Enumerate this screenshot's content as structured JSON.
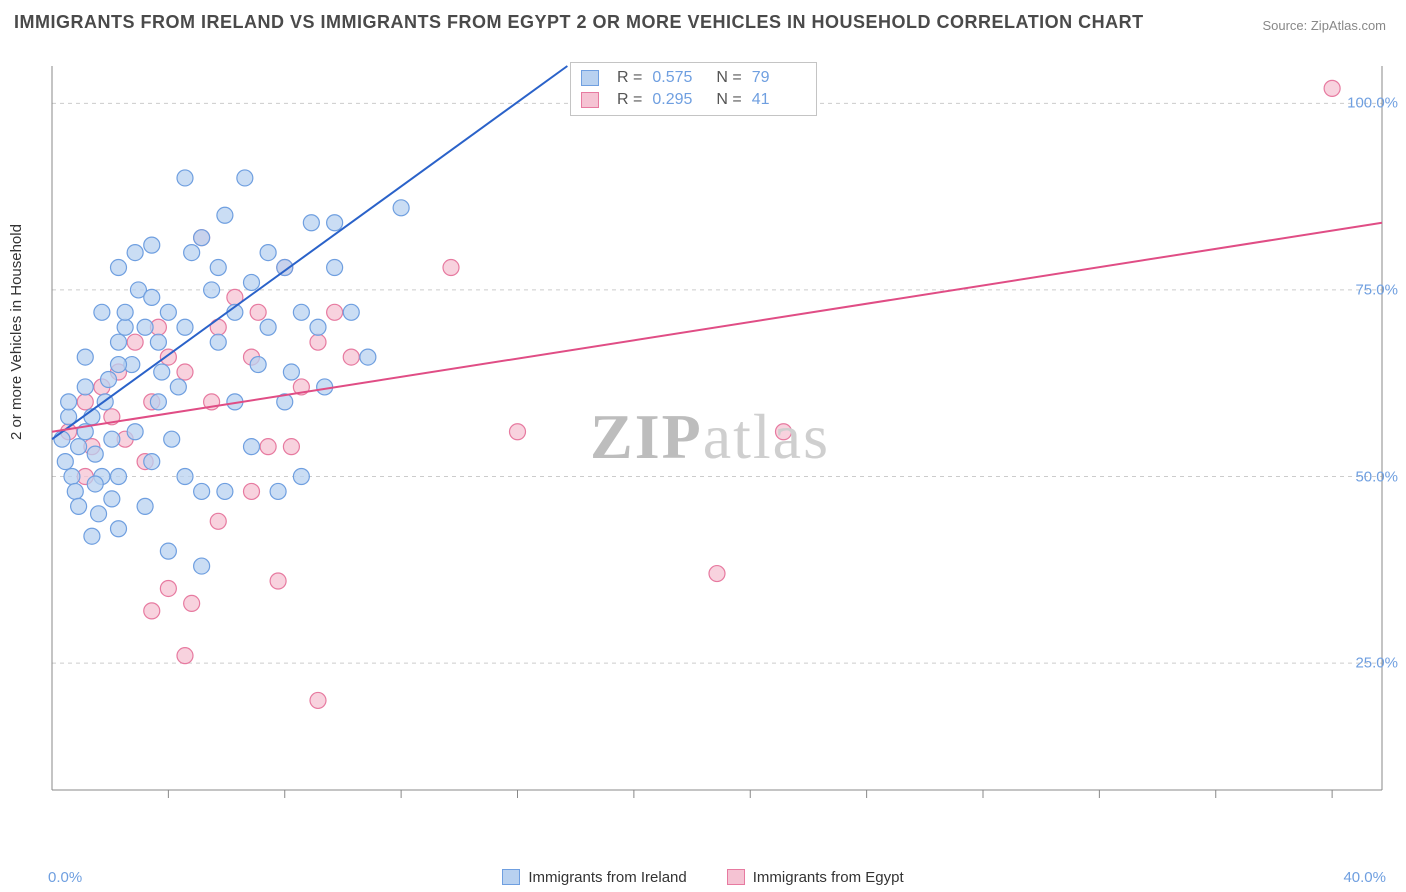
{
  "title": "IMMIGRANTS FROM IRELAND VS IMMIGRANTS FROM EGYPT 2 OR MORE VEHICLES IN HOUSEHOLD CORRELATION CHART",
  "source": "Source: ZipAtlas.com",
  "watermark": "ZIPatlas",
  "yaxis_label": "2 or more Vehicles in Household",
  "chart": {
    "type": "scatter",
    "background_color": "#ffffff",
    "grid_color": "#cccccc",
    "axis_color": "#888888",
    "xlim": [
      0,
      40
    ],
    "ylim": [
      8,
      105
    ],
    "xticks": [
      0,
      40
    ],
    "xtick_labels": [
      "0.0%",
      "40.0%"
    ],
    "xtick_minor": [
      3.5,
      7,
      10.5,
      14,
      17.5,
      21,
      24.5,
      28,
      31.5,
      35,
      38.5
    ],
    "yticks": [
      25,
      50,
      75,
      100
    ],
    "ytick_labels": [
      "25.0%",
      "50.0%",
      "75.0%",
      "100.0%"
    ],
    "marker_radius": 8,
    "marker_stroke_width": 1.2,
    "line_width": 2,
    "series": [
      {
        "name": "Immigrants from Ireland",
        "fill": "#b8d1f0",
        "stroke": "#6f9fe0",
        "line_color": "#2a62c9",
        "R": "0.575",
        "N": "79",
        "trend": {
          "x1": 0,
          "y1": 55,
          "x2": 15.5,
          "y2": 105
        },
        "points": [
          [
            0.3,
            55
          ],
          [
            0.5,
            58
          ],
          [
            0.4,
            52
          ],
          [
            0.6,
            50
          ],
          [
            0.8,
            54
          ],
          [
            0.5,
            60
          ],
          [
            1.0,
            56
          ],
          [
            0.7,
            48
          ],
          [
            1.0,
            62
          ],
          [
            1.2,
            58
          ],
          [
            1.3,
            53
          ],
          [
            1.5,
            50
          ],
          [
            1.4,
            45
          ],
          [
            1.0,
            66
          ],
          [
            1.7,
            63
          ],
          [
            1.6,
            60
          ],
          [
            2.0,
            68
          ],
          [
            1.8,
            55
          ],
          [
            2.2,
            70
          ],
          [
            2.0,
            50
          ],
          [
            2.4,
            65
          ],
          [
            2.2,
            72
          ],
          [
            2.0,
            78
          ],
          [
            2.6,
            75
          ],
          [
            2.5,
            80
          ],
          [
            2.8,
            70
          ],
          [
            3.0,
            74
          ],
          [
            3.0,
            81
          ],
          [
            3.2,
            68
          ],
          [
            3.2,
            60
          ],
          [
            3.5,
            72
          ],
          [
            3.3,
            64
          ],
          [
            3.6,
            55
          ],
          [
            3.8,
            62
          ],
          [
            4.0,
            70
          ],
          [
            4.0,
            50
          ],
          [
            4.2,
            80
          ],
          [
            4.0,
            90
          ],
          [
            4.5,
            82
          ],
          [
            4.8,
            75
          ],
          [
            4.5,
            48
          ],
          [
            5.0,
            68
          ],
          [
            5.0,
            78
          ],
          [
            5.2,
            85
          ],
          [
            5.5,
            72
          ],
          [
            5.5,
            60
          ],
          [
            6.0,
            76
          ],
          [
            5.8,
            90
          ],
          [
            6.2,
            65
          ],
          [
            6.0,
            54
          ],
          [
            6.5,
            70
          ],
          [
            6.5,
            80
          ],
          [
            7.0,
            78
          ],
          [
            7.2,
            64
          ],
          [
            7.5,
            72
          ],
          [
            7.0,
            60
          ],
          [
            3.5,
            40
          ],
          [
            4.5,
            38
          ],
          [
            1.8,
            47
          ],
          [
            2.0,
            43
          ],
          [
            1.3,
            49
          ],
          [
            0.8,
            46
          ],
          [
            2.8,
            46
          ],
          [
            7.8,
            84
          ],
          [
            8.0,
            70
          ],
          [
            8.2,
            62
          ],
          [
            8.5,
            78
          ],
          [
            6.8,
            48
          ],
          [
            9.0,
            72
          ],
          [
            9.5,
            66
          ],
          [
            8.5,
            84
          ],
          [
            10.5,
            86
          ],
          [
            3.0,
            52
          ],
          [
            2.5,
            56
          ],
          [
            2.0,
            65
          ],
          [
            1.5,
            72
          ],
          [
            7.5,
            50
          ],
          [
            1.2,
            42
          ],
          [
            5.2,
            48
          ]
        ]
      },
      {
        "name": "Immigrants from Egypt",
        "fill": "#f5c3d3",
        "stroke": "#e77aa0",
        "line_color": "#e04d85",
        "R": "0.295",
        "N": "41",
        "trend": {
          "x1": 0,
          "y1": 56,
          "x2": 40,
          "y2": 84
        },
        "points": [
          [
            0.5,
            56
          ],
          [
            1.0,
            60
          ],
          [
            1.2,
            54
          ],
          [
            1.5,
            62
          ],
          [
            1.0,
            50
          ],
          [
            1.8,
            58
          ],
          [
            2.0,
            64
          ],
          [
            2.2,
            55
          ],
          [
            2.5,
            68
          ],
          [
            3.0,
            60
          ],
          [
            2.8,
            52
          ],
          [
            3.5,
            66
          ],
          [
            3.2,
            70
          ],
          [
            4.0,
            64
          ],
          [
            4.5,
            82
          ],
          [
            5.0,
            70
          ],
          [
            4.8,
            60
          ],
          [
            5.5,
            74
          ],
          [
            6.0,
            66
          ],
          [
            6.5,
            54
          ],
          [
            6.2,
            72
          ],
          [
            7.0,
            78
          ],
          [
            7.5,
            62
          ],
          [
            8.0,
            68
          ],
          [
            8.5,
            72
          ],
          [
            6.0,
            48
          ],
          [
            6.8,
            36
          ],
          [
            7.2,
            54
          ],
          [
            8.0,
            20
          ],
          [
            9.0,
            66
          ],
          [
            4.0,
            26
          ],
          [
            3.5,
            35
          ],
          [
            4.2,
            33
          ],
          [
            12.0,
            78
          ],
          [
            14.0,
            56
          ],
          [
            18.0,
            103
          ],
          [
            20.0,
            37
          ],
          [
            22.0,
            56
          ],
          [
            38.5,
            102
          ],
          [
            5.0,
            44
          ],
          [
            3.0,
            32
          ]
        ]
      }
    ],
    "bottom_legend": [
      {
        "label": "Immigrants from Ireland",
        "fill": "#b8d1f0",
        "stroke": "#6f9fe0"
      },
      {
        "label": "Immigrants from Egypt",
        "fill": "#f5c3d3",
        "stroke": "#e77aa0"
      }
    ]
  }
}
